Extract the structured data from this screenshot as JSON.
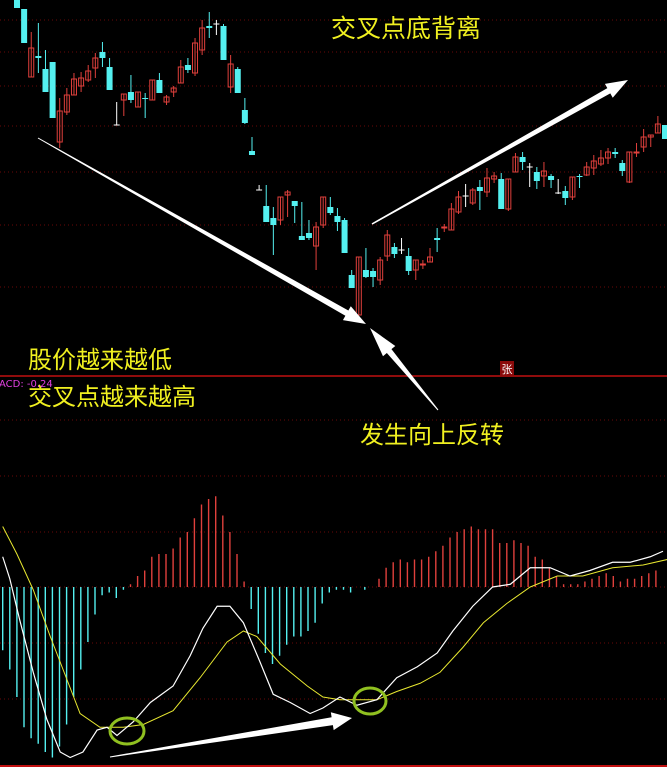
{
  "annotations": {
    "title": "交叉点底背离",
    "price_lower": "股价越来越低",
    "cross_higher": "交叉点越来越高",
    "reversal": "发生向上反转"
  },
  "indicator_label": "ACD: -0.24",
  "badge": "张",
  "colors": {
    "background": "#000000",
    "up_candle": "#e0403c",
    "down_candle": "#54f0f0",
    "doji": "#ffffff",
    "dif_line": "#ffffff",
    "dea_line": "#e8e830",
    "hist_positive": "#e0403c",
    "hist_negative": "#54f0f0",
    "separator": "#c01010",
    "grid": "#6a0808",
    "annotation_text": "#f0f020",
    "highlight_circle": "#90c020"
  },
  "chart_data": [
    {
      "type": "candlestick",
      "grid": true,
      "columns": [
        "open",
        "high",
        "low",
        "close"
      ],
      "candles": [
        [
          37.6,
          37.6,
          36.8,
          36.8
        ],
        [
          36.7,
          36.7,
          33.3,
          33.3
        ],
        [
          29.9,
          34.4,
          29.9,
          32.8
        ],
        [
          32.0,
          35.3,
          30.3,
          31.8
        ],
        [
          30.7,
          32.6,
          28.4,
          28.4
        ],
        [
          31.4,
          31.4,
          25.8,
          25.8
        ],
        [
          23.4,
          27.8,
          22.8,
          26.5
        ],
        [
          26.4,
          28.8,
          26.1,
          28.1
        ],
        [
          28.1,
          30.3,
          28.1,
          29.7
        ],
        [
          29.0,
          30.4,
          28.4,
          29.8
        ],
        [
          29.6,
          31.1,
          29.4,
          30.5
        ],
        [
          30.8,
          32.3,
          29.8,
          31.8
        ],
        [
          32.4,
          33.4,
          30.9,
          31.8
        ],
        [
          30.9,
          31.8,
          28.6,
          28.6
        ],
        [
          25.1,
          27.4,
          25.1,
          25.1
        ],
        [
          27.6,
          28.2,
          26.0,
          28.2
        ],
        [
          28.4,
          30.1,
          27.3,
          27.6
        ],
        [
          26.9,
          28.4,
          26.9,
          28.4
        ],
        [
          27.8,
          28.3,
          25.8,
          27.7
        ],
        [
          27.6,
          29.6,
          27.6,
          29.6
        ],
        [
          29.6,
          30.3,
          28.3,
          28.3
        ],
        [
          27.4,
          28.1,
          27.1,
          27.9
        ],
        [
          28.4,
          29.0,
          27.9,
          28.8
        ],
        [
          29.3,
          31.6,
          29.3,
          30.9
        ],
        [
          31.1,
          31.8,
          30.3,
          30.6
        ],
        [
          30.3,
          33.8,
          30.0,
          33.3
        ],
        [
          32.6,
          35.6,
          32.1,
          34.8
        ],
        [
          35.0,
          36.4,
          33.8,
          34.8
        ],
        [
          35.2,
          35.6,
          34.1,
          35.2
        ],
        [
          35.0,
          35.2,
          31.6,
          31.6
        ],
        [
          28.9,
          32.1,
          28.3,
          31.2
        ],
        [
          30.7,
          30.9,
          28.3,
          28.3
        ],
        [
          26.6,
          27.8,
          25.2,
          25.3
        ],
        [
          22.5,
          23.9,
          22.1,
          22.1
        ],
        [
          18.6,
          19.1,
          18.6,
          18.6
        ],
        [
          17.0,
          19.1,
          15.4,
          15.4
        ],
        [
          15.8,
          16.9,
          12.1,
          15.1
        ],
        [
          15.6,
          17.9,
          15.1,
          17.9
        ],
        [
          18.1,
          18.6,
          15.9,
          18.4
        ],
        [
          17.5,
          17.5,
          15.3,
          17.0
        ],
        [
          14.0,
          17.4,
          13.6,
          13.6
        ],
        [
          14.3,
          15.6,
          13.6,
          13.8
        ],
        [
          13.0,
          15.4,
          10.6,
          14.9
        ],
        [
          15.1,
          17.9,
          14.8,
          17.9
        ],
        [
          16.9,
          17.9,
          16.1,
          16.3
        ],
        [
          16.0,
          16.8,
          14.5,
          15.4
        ],
        [
          15.6,
          15.8,
          12.3,
          12.3
        ],
        [
          10.1,
          10.6,
          8.8,
          8.8
        ],
        [
          6.1,
          11.9,
          6.1,
          11.9
        ],
        [
          10.6,
          12.8,
          9.8,
          9.9
        ],
        [
          10.5,
          10.8,
          8.9,
          9.9
        ],
        [
          9.6,
          11.9,
          9.1,
          11.6
        ],
        [
          12.0,
          14.6,
          11.5,
          14.1
        ],
        [
          12.9,
          13.3,
          11.8,
          12.2
        ],
        [
          12.6,
          13.8,
          12.2,
          12.6
        ],
        [
          12.0,
          12.8,
          10.1,
          10.5
        ],
        [
          10.6,
          11.6,
          9.6,
          11.6
        ],
        [
          11.1,
          11.6,
          10.7,
          11.2
        ],
        [
          11.4,
          12.8,
          11.4,
          11.9
        ],
        [
          13.8,
          14.8,
          12.4,
          13.6
        ],
        [
          14.8,
          15.2,
          14.4,
          14.9
        ],
        [
          14.6,
          17.3,
          14.6,
          16.7
        ],
        [
          16.4,
          18.5,
          16.2,
          17.9
        ],
        [
          18.0,
          19.2,
          16.9,
          18.0
        ],
        [
          17.3,
          18.8,
          17.1,
          18.6
        ],
        [
          18.9,
          19.6,
          16.6,
          18.5
        ],
        [
          18.4,
          20.8,
          17.9,
          19.8
        ],
        [
          19.7,
          20.4,
          19.3,
          20.0
        ],
        [
          19.7,
          20.3,
          16.7,
          16.7
        ],
        [
          16.7,
          19.7,
          16.5,
          19.7
        ],
        [
          20.4,
          22.3,
          20.4,
          21.9
        ],
        [
          21.9,
          22.4,
          20.6,
          21.4
        ],
        [
          20.9,
          21.3,
          18.9,
          20.9
        ],
        [
          20.4,
          20.9,
          18.7,
          19.5
        ],
        [
          20.0,
          21.4,
          18.9,
          20.5
        ],
        [
          20.0,
          20.2,
          18.8,
          19.6
        ],
        [
          18.3,
          19.7,
          18.2,
          18.3
        ],
        [
          18.5,
          19.0,
          17.1,
          17.8
        ],
        [
          17.9,
          19.9,
          17.6,
          19.9
        ],
        [
          20.0,
          20.2,
          18.8,
          19.9
        ],
        [
          20.1,
          21.4,
          20.0,
          20.9
        ],
        [
          20.8,
          22.1,
          20.1,
          21.5
        ],
        [
          21.2,
          22.6,
          21.0,
          21.8
        ],
        [
          21.8,
          22.8,
          21.2,
          22.4
        ],
        [
          22.4,
          22.8,
          21.8,
          22.2
        ],
        [
          21.3,
          21.6,
          20.0,
          20.5
        ],
        [
          19.4,
          22.4,
          19.3,
          22.4
        ],
        [
          22.3,
          23.3,
          21.9,
          22.4
        ],
        [
          22.9,
          24.7,
          22.4,
          23.9
        ],
        [
          23.9,
          24.1,
          22.9,
          24.1
        ],
        [
          24.3,
          26.0,
          24.3,
          25.2
        ],
        [
          25.1,
          25.1,
          23.7,
          23.7
        ]
      ]
    },
    {
      "type": "macd",
      "grid": true,
      "histogram": [
        -0.23,
        -0.3,
        -0.4,
        -0.51,
        -0.55,
        -0.57,
        -0.6,
        -0.62,
        -0.58,
        -0.5,
        -0.4,
        -0.3,
        -0.2,
        -0.1,
        -0.03,
        -0.02,
        -0.04,
        -0.01,
        0.01,
        0.04,
        0.06,
        0.11,
        0.12,
        0.12,
        0.14,
        0.18,
        0.2,
        0.25,
        0.3,
        0.32,
        0.33,
        0.26,
        0.2,
        0.12,
        0.02,
        -0.08,
        -0.17,
        -0.24,
        -0.28,
        -0.25,
        -0.21,
        -0.18,
        -0.18,
        -0.16,
        -0.13,
        -0.06,
        -0.02,
        -0.01,
        -0.01,
        -0.02,
        0,
        -0.01,
        0,
        0.03,
        0.07,
        0.09,
        0.1,
        0.09,
        0.1,
        0.1,
        0.11,
        0.13,
        0.15,
        0.18,
        0.2,
        0.21,
        0.22,
        0.21,
        0.21,
        0.21,
        0.16,
        0.16,
        0.17,
        0.16,
        0.15,
        0.11,
        0.1,
        0.07,
        0.04,
        0.01,
        0.01,
        0.01,
        0.02,
        0.03,
        0.04,
        0.05,
        0.04,
        0.02,
        0.03,
        0.03,
        0.04,
        0.05,
        0.06
      ],
      "dif": [
        [
          0,
          0.11
        ],
        [
          1,
          0.03
        ],
        [
          2.4,
          -0.12
        ],
        [
          4.3,
          -0.31
        ],
        [
          6.2,
          -0.48
        ],
        [
          8.1,
          -0.6
        ],
        [
          9.5,
          -0.62
        ],
        [
          11.3,
          -0.6
        ],
        [
          13.3,
          -0.52
        ],
        [
          14.7,
          -0.51
        ],
        [
          16.1,
          -0.54
        ],
        [
          18.4,
          -0.49
        ],
        [
          20.8,
          -0.42
        ],
        [
          24,
          -0.36
        ],
        [
          26.4,
          -0.25
        ],
        [
          28.2,
          -0.15
        ],
        [
          30.2,
          -0.07
        ],
        [
          32,
          -0.07
        ],
        [
          33.9,
          -0.13
        ],
        [
          36.2,
          -0.27
        ],
        [
          38.1,
          -0.39
        ],
        [
          40.5,
          -0.42
        ],
        [
          43.3,
          -0.46
        ],
        [
          45.1,
          -0.44
        ],
        [
          47.5,
          -0.4
        ],
        [
          49.9,
          -0.43
        ],
        [
          52.7,
          -0.41
        ],
        [
          55.5,
          -0.33
        ],
        [
          58.4,
          -0.29
        ],
        [
          61.2,
          -0.24
        ],
        [
          63.4,
          -0.16
        ],
        [
          66.2,
          -0.07
        ],
        [
          69,
          0.0
        ],
        [
          71.5,
          0.01
        ],
        [
          74.3,
          0.07
        ],
        [
          77.1,
          0.07
        ],
        [
          79.9,
          0.04
        ],
        [
          82.7,
          0.06
        ],
        [
          85.9,
          0.09
        ],
        [
          88.4,
          0.09
        ],
        [
          91.2,
          0.11
        ],
        [
          93,
          0.13
        ]
      ],
      "dea": [
        [
          0,
          0.22
        ],
        [
          2,
          0.12
        ],
        [
          4.3,
          -0.01
        ],
        [
          6.7,
          -0.18
        ],
        [
          9.1,
          -0.34
        ],
        [
          10.9,
          -0.46
        ],
        [
          13.7,
          -0.51
        ],
        [
          17,
          -0.51
        ],
        [
          19.8,
          -0.5
        ],
        [
          24,
          -0.45
        ],
        [
          27.8,
          -0.33
        ],
        [
          31.6,
          -0.2
        ],
        [
          33.9,
          -0.16
        ],
        [
          35.8,
          -0.18
        ],
        [
          39.1,
          -0.28
        ],
        [
          42.9,
          -0.36
        ],
        [
          45.1,
          -0.4
        ],
        [
          47.5,
          -0.41
        ],
        [
          48.5,
          -0.41
        ],
        [
          52.7,
          -0.41
        ],
        [
          55.5,
          -0.38
        ],
        [
          58.8,
          -0.35
        ],
        [
          61.6,
          -0.31
        ],
        [
          64.8,
          -0.22
        ],
        [
          67.7,
          -0.13
        ],
        [
          71,
          -0.06
        ],
        [
          74.3,
          0.0
        ],
        [
          78.1,
          0.04
        ],
        [
          81.7,
          0.04
        ],
        [
          85.9,
          0.07
        ],
        [
          90.2,
          0.08
        ],
        [
          93.6,
          0.1
        ]
      ]
    }
  ]
}
